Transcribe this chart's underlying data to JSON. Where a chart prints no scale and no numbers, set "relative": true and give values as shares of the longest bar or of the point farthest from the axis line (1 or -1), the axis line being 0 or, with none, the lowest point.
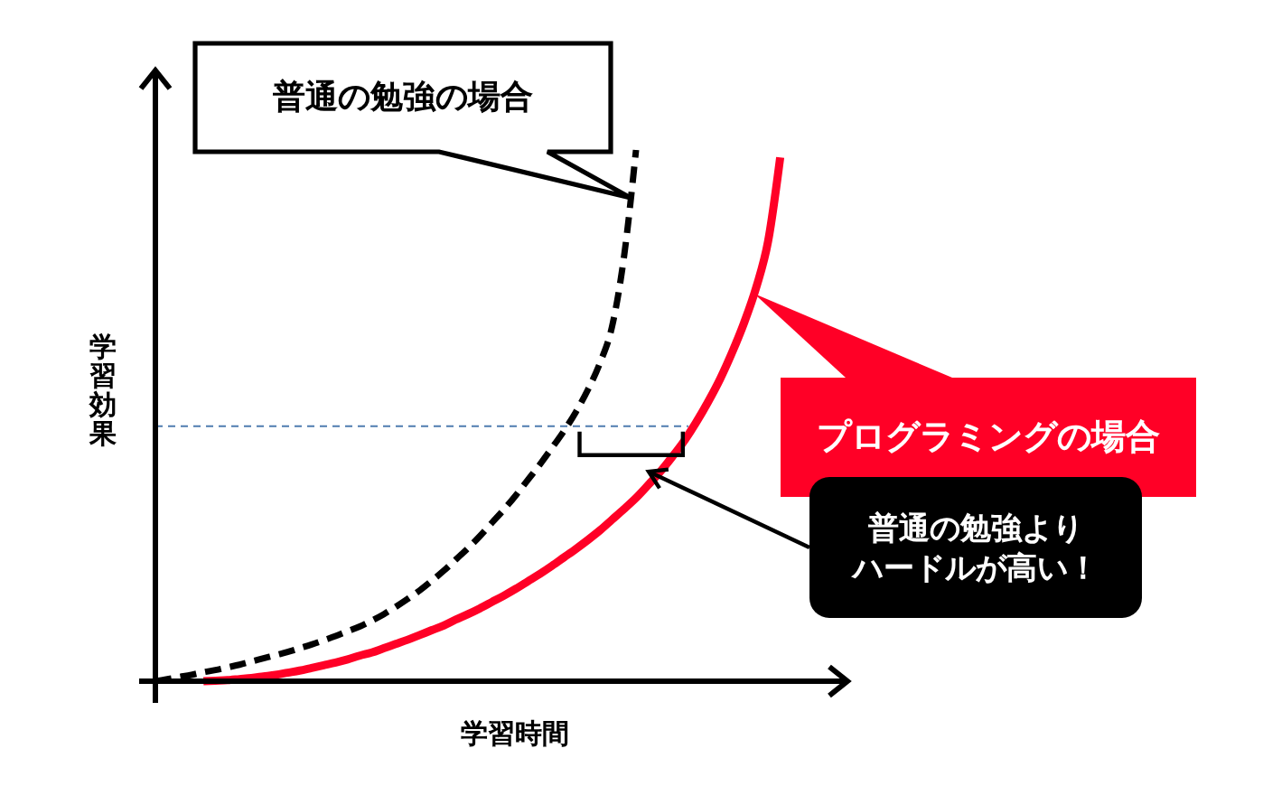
{
  "chart_data": {
    "type": "line",
    "relative": true,
    "xlabel": "学習時間",
    "ylabel": "学習効果",
    "categories": [
      null,
      null,
      null,
      null,
      null,
      null,
      null,
      null,
      null,
      null,
      null,
      null,
      null,
      null,
      null,
      null,
      null,
      null,
      null,
      null,
      null,
      null,
      null,
      null,
      null,
      null,
      null,
      null,
      null,
      null,
      null,
      null,
      null,
      null,
      null,
      null,
      null,
      null,
      null,
      null,
      null,
      null,
      null,
      null,
      null,
      null,
      null,
      null,
      null,
      null,
      null,
      null,
      null
    ],
    "series": [
      {
        "name": "普通の勉強の場合",
        "color": "#000000",
        "line_style": "dashed",
        "values": [
          0,
          0.004,
          0.008,
          0.012,
          0.017,
          0.021,
          0.026,
          0.031,
          0.037,
          0.043,
          0.049,
          0.055,
          0.062,
          0.069,
          0.077,
          0.085,
          0.094,
          0.103,
          0.114,
          0.126,
          0.14,
          0.155,
          0.171,
          0.189,
          0.208,
          0.229,
          0.25,
          0.273,
          0.298,
          0.323,
          0.35,
          0.379,
          0.408,
          0.439,
          0.471,
          0.507,
          0.549,
          0.599,
          0.667,
          0.799,
          1,
          null,
          null,
          null,
          null,
          null,
          null,
          null,
          null,
          null,
          null,
          null,
          null
        ]
      },
      {
        "name": "プログラミングの場合",
        "color": "#ff0026",
        "line_style": "solid",
        "values": [
          null,
          null,
          null,
          null,
          0,
          0.001,
          0.002,
          0.004,
          0.006,
          0.009,
          0.012,
          0.016,
          0.02,
          0.025,
          0.03,
          0.035,
          0.041,
          0.048,
          0.054,
          0.062,
          0.07,
          0.078,
          0.087,
          0.096,
          0.105,
          0.116,
          0.126,
          0.137,
          0.149,
          0.161,
          0.174,
          0.188,
          0.202,
          0.217,
          0.233,
          0.249,
          0.266,
          0.284,
          0.304,
          0.324,
          0.345,
          0.369,
          0.394,
          0.422,
          0.452,
          0.487,
          0.526,
          0.569,
          0.619,
          0.675,
          0.741,
          0.829,
          0.986
        ]
      }
    ],
    "ref_lines": [
      {
        "axis": "y",
        "value": 0.48,
        "color": "#4f7cb0",
        "line_style": "dashed"
      }
    ],
    "annotations": [
      "普通の勉強よりハードルが高い！"
    ]
  }
}
